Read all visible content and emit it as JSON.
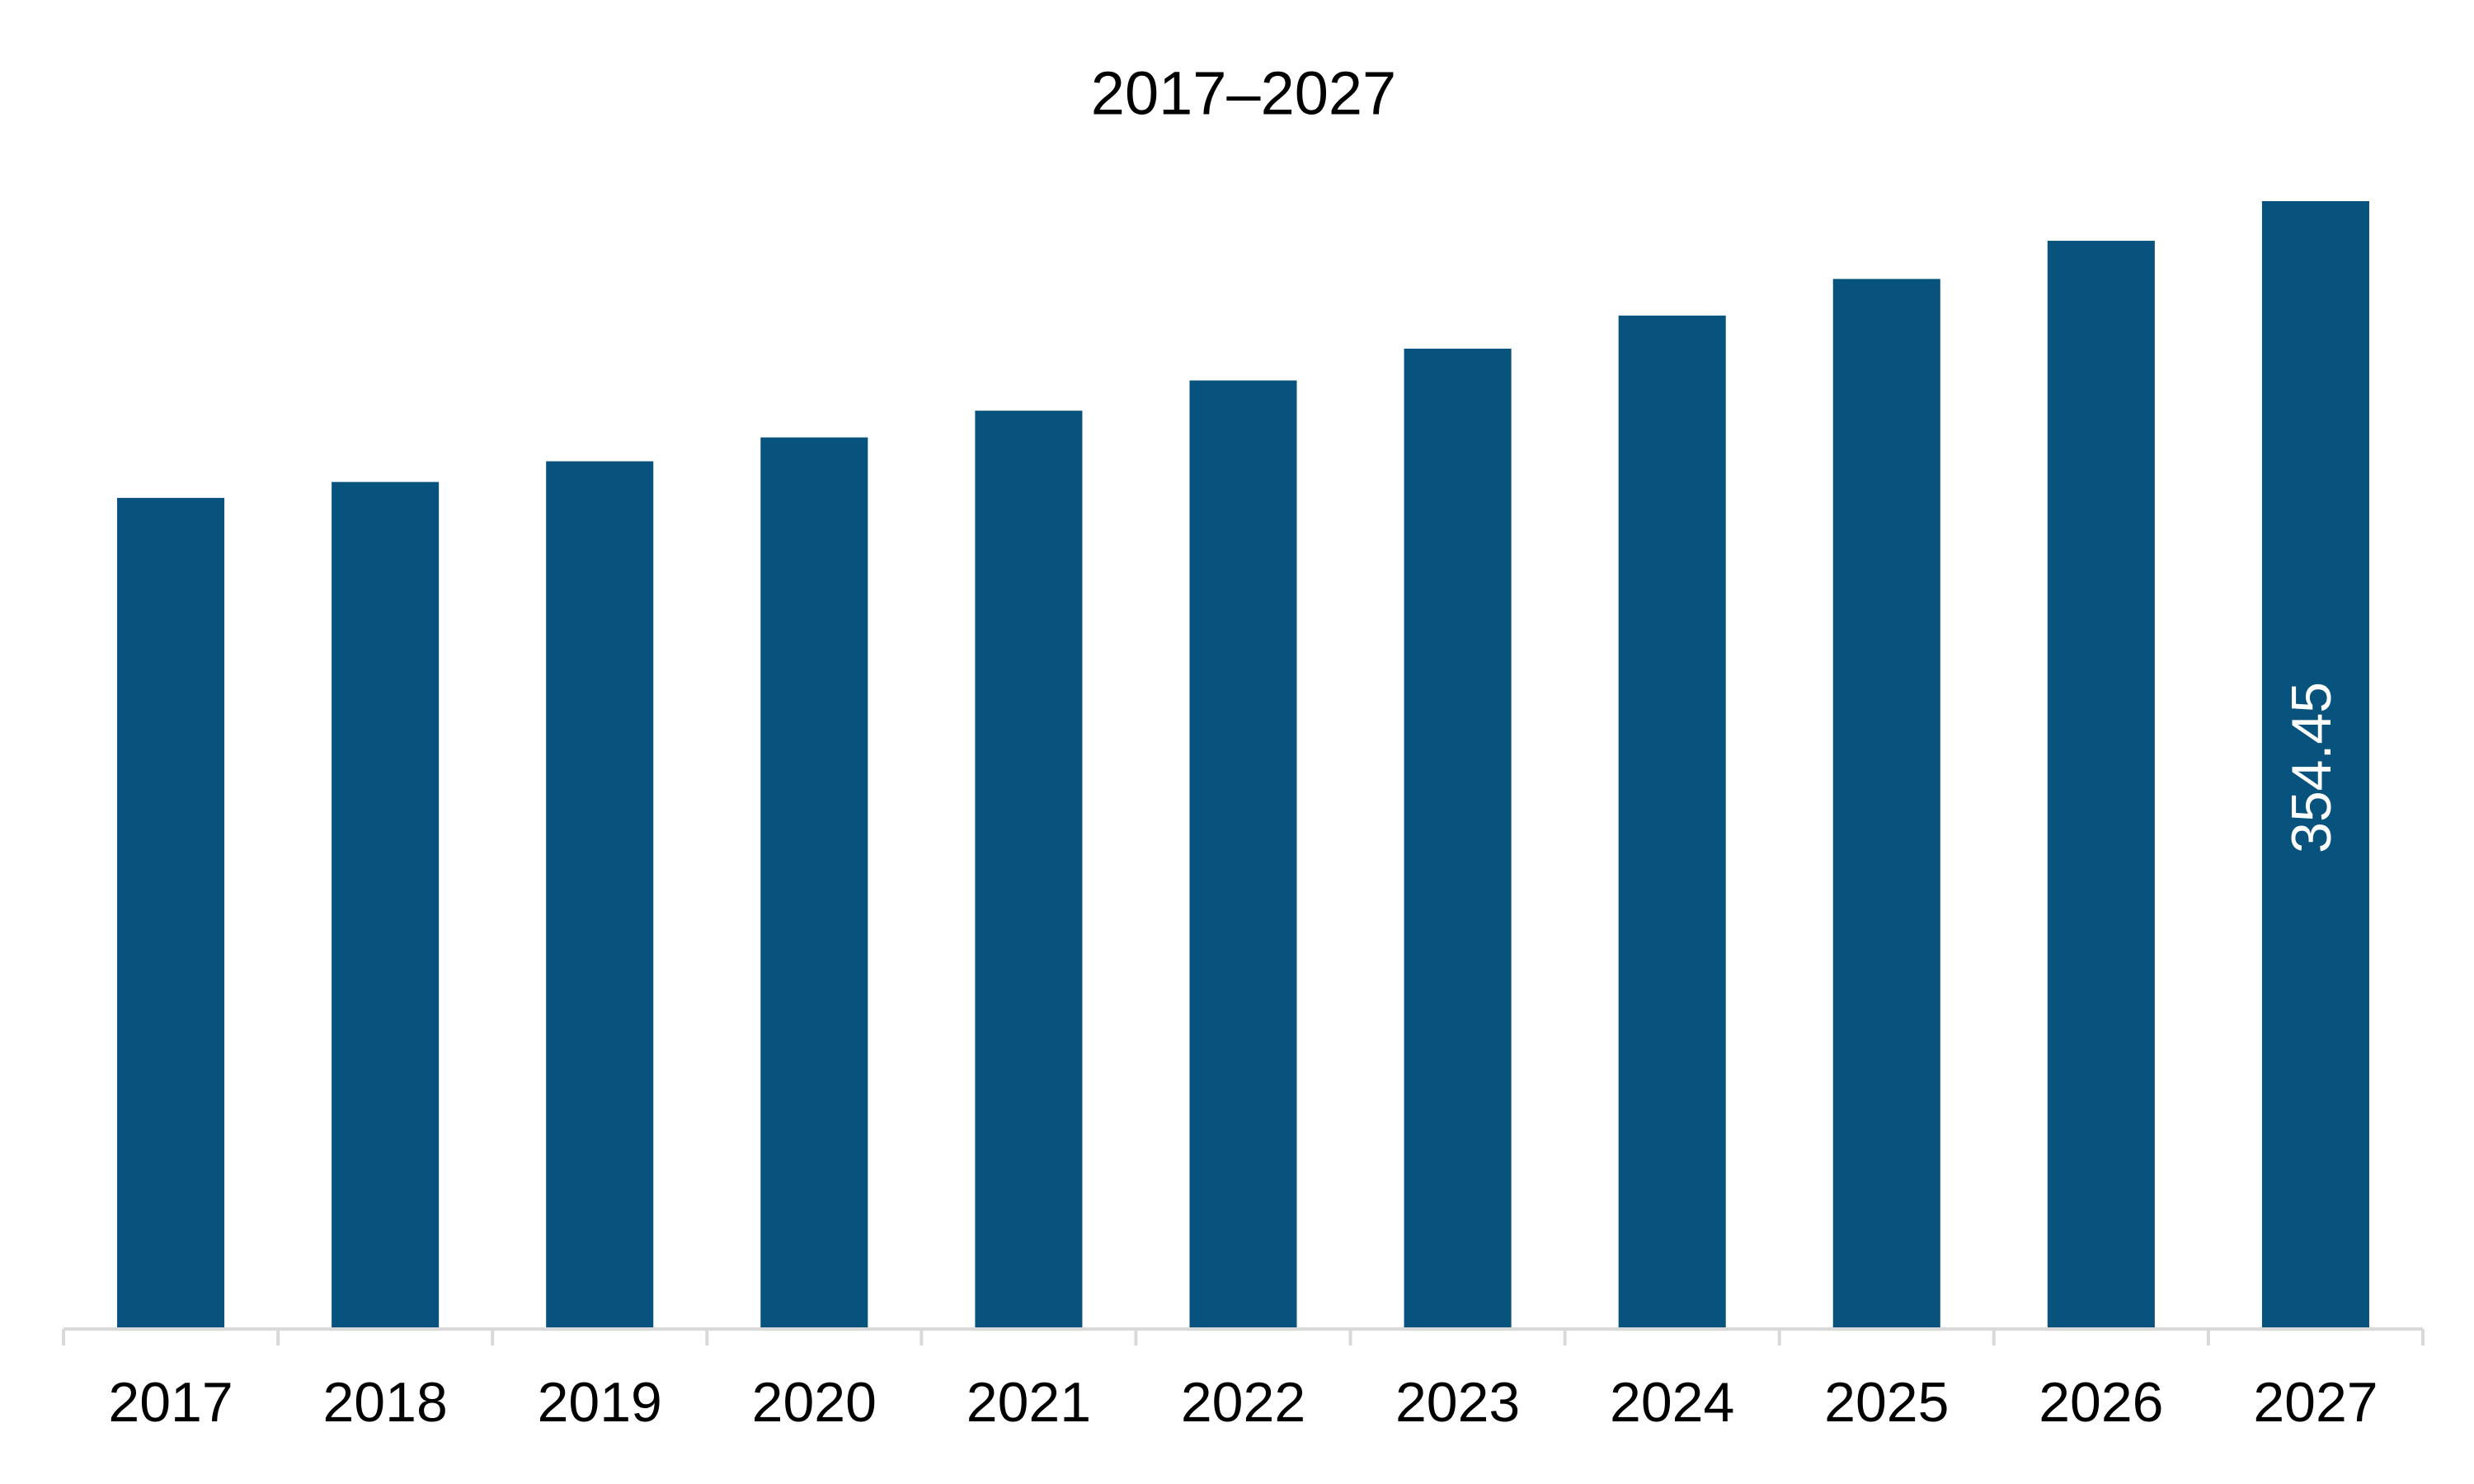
{
  "chart_data": {
    "type": "bar",
    "title": "2017–2027",
    "categories": [
      "2017",
      "2018",
      "2019",
      "2020",
      "2021",
      "2022",
      "2023",
      "2024",
      "2025",
      "2026",
      "2027"
    ],
    "values": [
      261.2,
      266.2,
      272.7,
      280.2,
      288.6,
      298.1,
      308.1,
      318.5,
      330.0,
      342.0,
      354.45
    ],
    "color": "#08527e"
  }
}
